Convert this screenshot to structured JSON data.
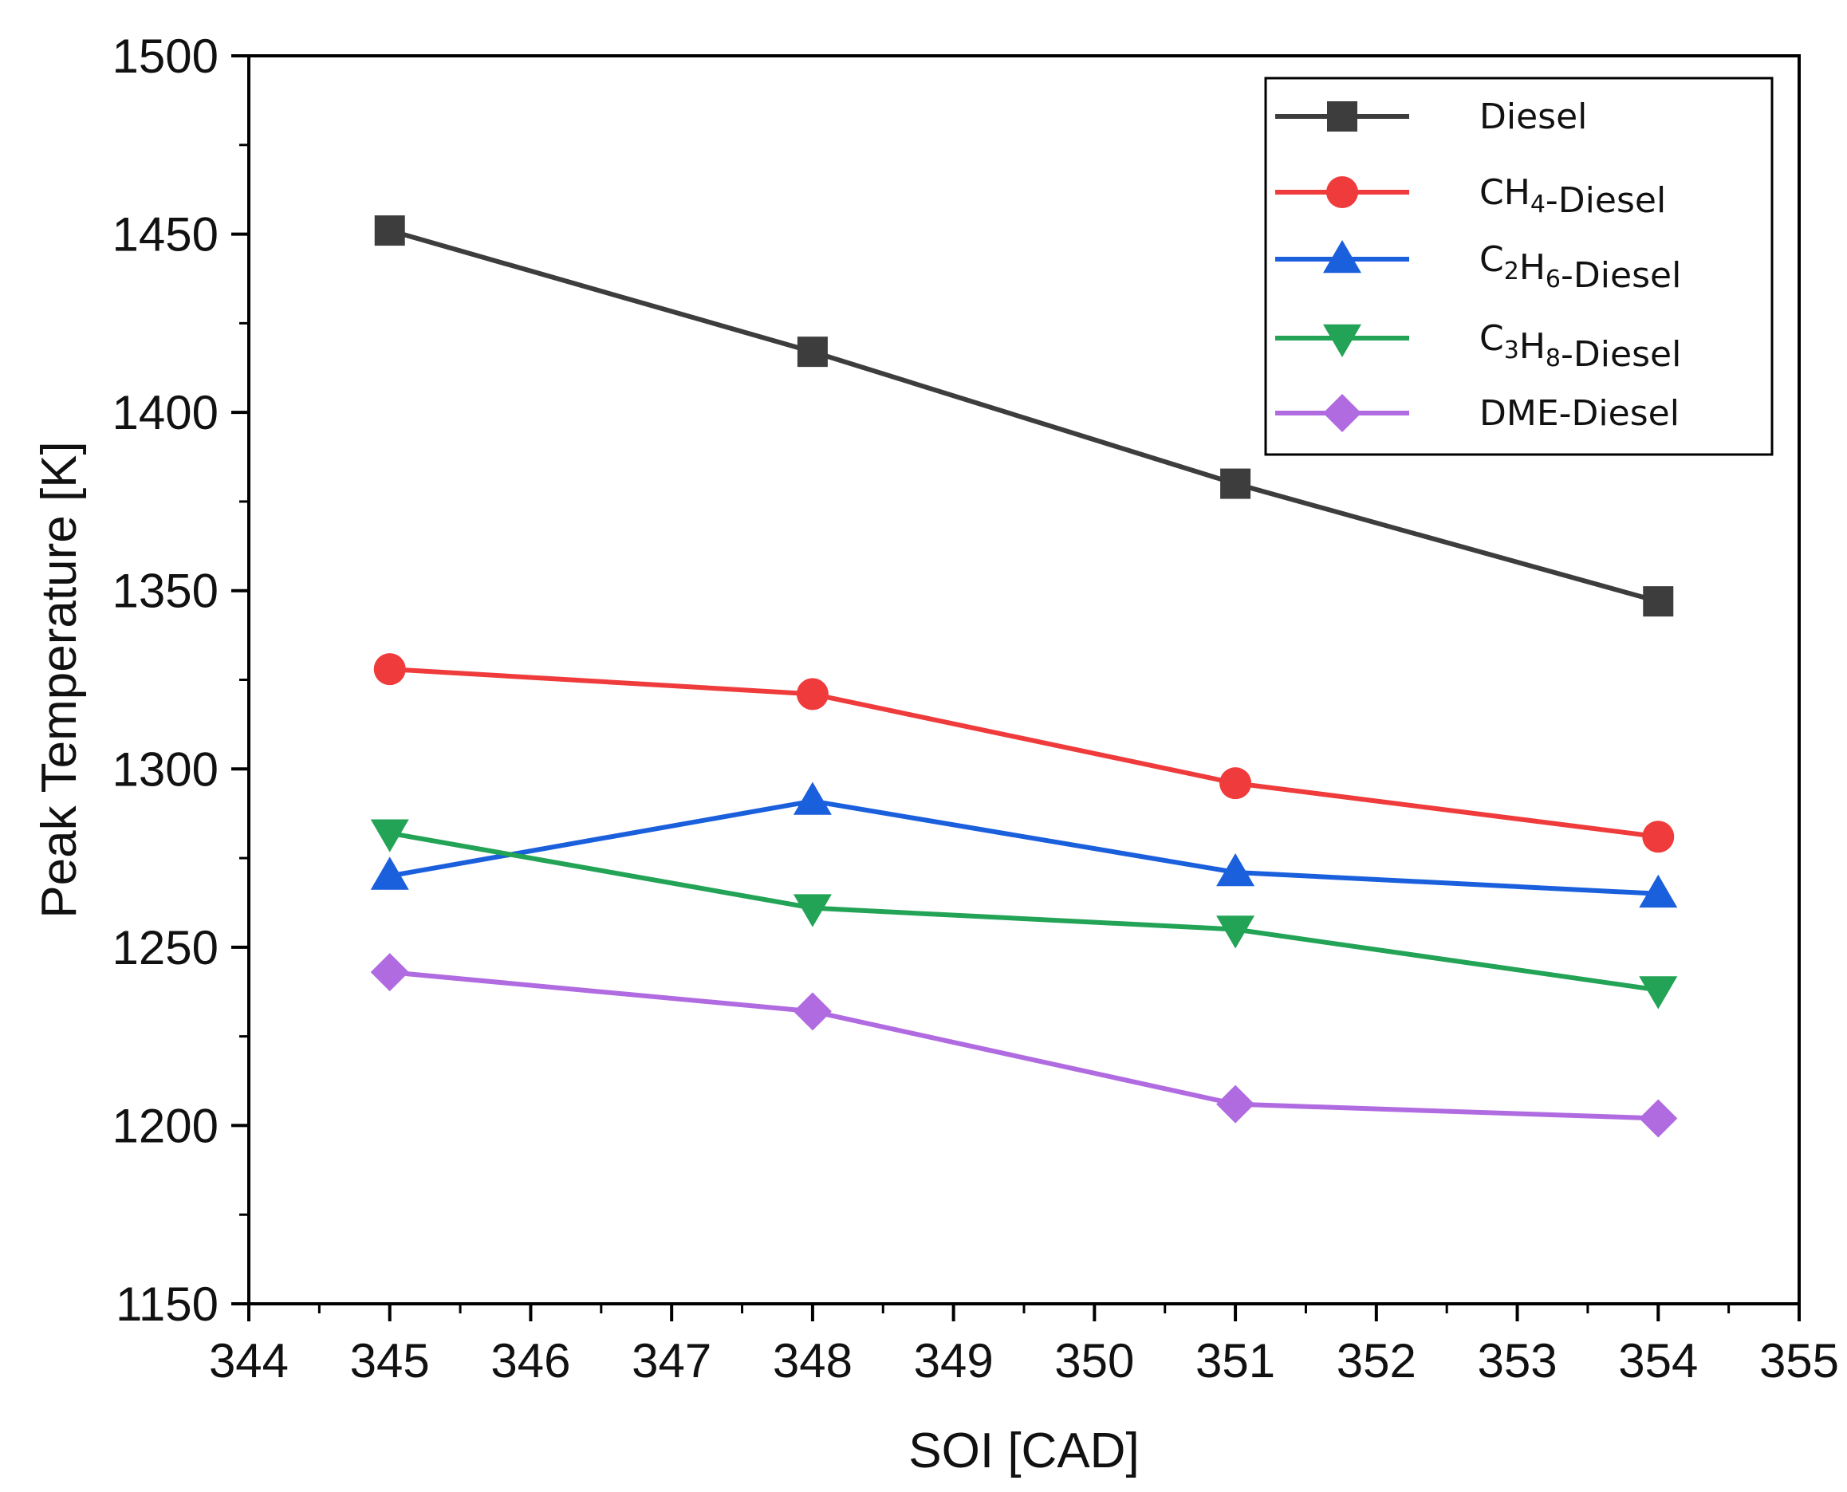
{
  "chart_data": {
    "type": "line",
    "title": "",
    "xlabel": "SOI [CAD]",
    "ylabel": "Peak Temperature [K]",
    "xlim": [
      344,
      355
    ],
    "ylim": [
      1150,
      1500
    ],
    "xticks": [
      344,
      345,
      346,
      347,
      348,
      349,
      350,
      351,
      352,
      353,
      354,
      355
    ],
    "yticks": [
      1150,
      1200,
      1250,
      1300,
      1350,
      1400,
      1450,
      1500
    ],
    "grid": false,
    "legend_position": "top-right",
    "x": [
      345,
      348,
      351,
      354
    ],
    "series": [
      {
        "name": "Diesel",
        "label_parts": [
          [
            "Diesel",
            ""
          ]
        ],
        "color": "#3d3d3d",
        "marker": "square",
        "values": [
          1451,
          1417,
          1380,
          1347
        ]
      },
      {
        "name": "CH4-Diesel",
        "label_parts": [
          [
            "CH",
            ""
          ],
          [
            "4",
            "sub"
          ],
          [
            "-Diesel",
            ""
          ]
        ],
        "color": "#ef3b3b",
        "marker": "circle",
        "values": [
          1328,
          1321,
          1296,
          1281
        ]
      },
      {
        "name": "C2H6-Diesel",
        "label_parts": [
          [
            "C",
            ""
          ],
          [
            "2",
            "sub"
          ],
          [
            "H",
            ""
          ],
          [
            "6",
            "sub"
          ],
          [
            "-Diesel",
            ""
          ]
        ],
        "color": "#1a5fdc",
        "marker": "triangle-up",
        "values": [
          1270,
          1291,
          1271,
          1265
        ]
      },
      {
        "name": "C3H8-Diesel",
        "label_parts": [
          [
            "C",
            ""
          ],
          [
            "3",
            "sub"
          ],
          [
            "H",
            ""
          ],
          [
            "8",
            "sub"
          ],
          [
            "-Diesel",
            ""
          ]
        ],
        "color": "#22a356",
        "marker": "triangle-down",
        "values": [
          1282,
          1261,
          1255,
          1238
        ]
      },
      {
        "name": "DME-Diesel",
        "label_parts": [
          [
            "DME-Diesel",
            ""
          ]
        ],
        "color": "#b06be0",
        "marker": "diamond",
        "values": [
          1243,
          1232,
          1206,
          1202
        ]
      }
    ]
  }
}
